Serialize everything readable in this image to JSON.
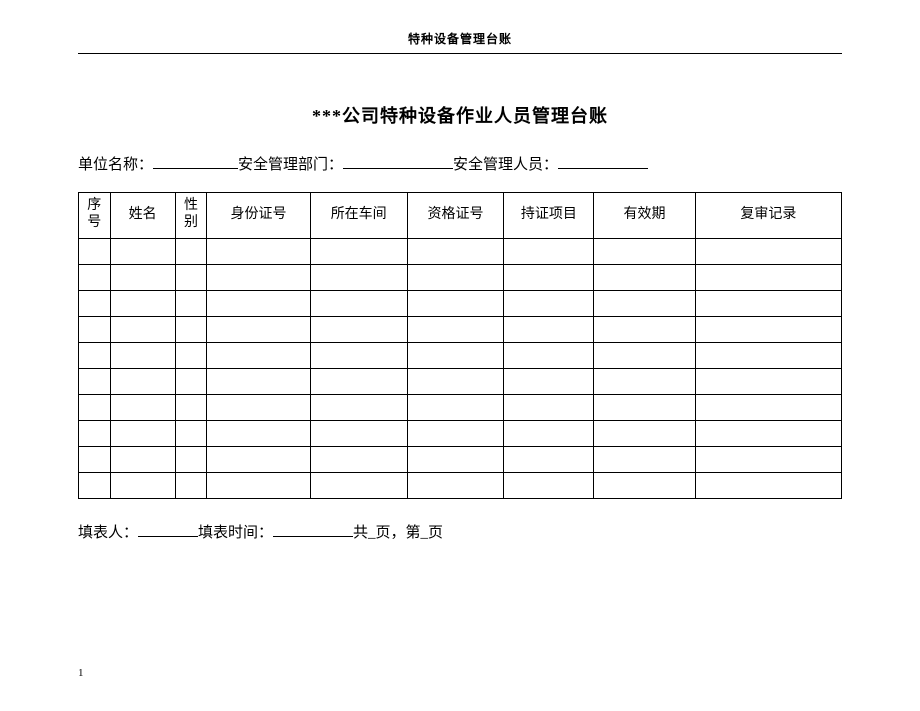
{
  "doc_header": "特种设备管理台账",
  "title": "***公司特种设备作业人员管理台账",
  "info": {
    "unit_label": "单位名称：",
    "dept_label": "安全管理部门：",
    "person_label": "安全管理人员："
  },
  "table": {
    "columns": [
      {
        "key": "seq",
        "label_line1": "序",
        "label_line2": "号",
        "class": "col-seq"
      },
      {
        "key": "name",
        "label": "姓名",
        "class": "col-name"
      },
      {
        "key": "sex",
        "label_line1": "性",
        "label_line2": "别",
        "class": "col-sex"
      },
      {
        "key": "idno",
        "label": "身份证号",
        "class": "col-id"
      },
      {
        "key": "workshop",
        "label": "所在车间",
        "class": "col-workshop"
      },
      {
        "key": "cert",
        "label": "资格证号",
        "class": "col-cert"
      },
      {
        "key": "project",
        "label": "持证项目",
        "class": "col-project"
      },
      {
        "key": "valid",
        "label": "有效期",
        "class": "col-valid"
      },
      {
        "key": "review",
        "label": "复审记录",
        "class": "col-review"
      }
    ],
    "row_count": 10,
    "col_count": 9
  },
  "footer": {
    "filler_label": "填表人：",
    "time_label": " 填表时间：",
    "page_text": "共_页，第_页"
  },
  "page_number": "1",
  "colors": {
    "text": "#000000",
    "border": "#000000",
    "background": "#ffffff"
  },
  "fonts": {
    "body": "SimSun",
    "header_size_pt": 12,
    "title_size_pt": 18,
    "info_size_pt": 15,
    "table_size_pt": 14
  }
}
